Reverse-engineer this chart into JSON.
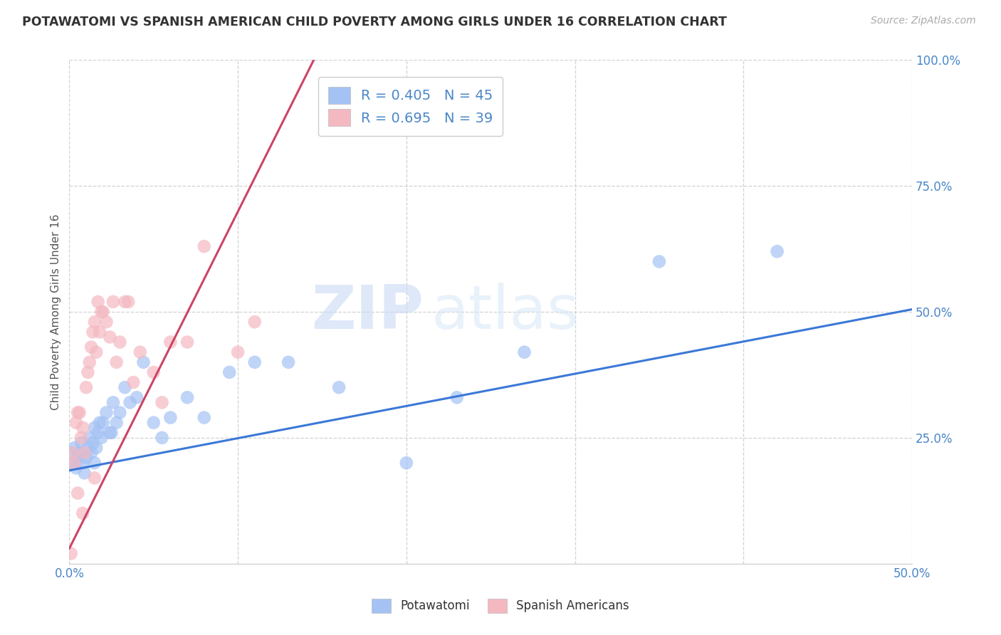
{
  "title": "POTAWATOMI VS SPANISH AMERICAN CHILD POVERTY AMONG GIRLS UNDER 16 CORRELATION CHART",
  "source": "Source: ZipAtlas.com",
  "ylabel": "Child Poverty Among Girls Under 16",
  "xlim": [
    0.0,
    0.5
  ],
  "ylim": [
    0.0,
    1.0
  ],
  "xticks": [
    0.0,
    0.1,
    0.2,
    0.3,
    0.4,
    0.5
  ],
  "xtick_labels_show": [
    "0.0%",
    "",
    "",
    "",
    "",
    "50.0%"
  ],
  "yticks": [
    0.0,
    0.25,
    0.5,
    0.75,
    1.0
  ],
  "ytick_labels": [
    "",
    "25.0%",
    "50.0%",
    "75.0%",
    "100.0%"
  ],
  "blue_label": "Potawatomi",
  "pink_label": "Spanish Americans",
  "blue_R": 0.405,
  "blue_N": 45,
  "pink_R": 0.695,
  "pink_N": 39,
  "blue_color": "#a4c2f4",
  "pink_color": "#f4b8c1",
  "blue_line_color": "#3c78d8",
  "pink_line_color": "#cc4466",
  "watermark_zip": "ZIP",
  "watermark_atlas": "atlas",
  "blue_trend_x": [
    0.0,
    0.5
  ],
  "blue_trend_y": [
    0.185,
    0.505
  ],
  "pink_trend_x": [
    0.0,
    0.145
  ],
  "pink_trend_y": [
    0.03,
    1.0
  ],
  "blue_x": [
    0.001,
    0.002,
    0.003,
    0.004,
    0.005,
    0.006,
    0.007,
    0.008,
    0.009,
    0.01,
    0.011,
    0.012,
    0.013,
    0.014,
    0.015,
    0.016,
    0.017,
    0.018,
    0.019,
    0.02,
    0.022,
    0.024,
    0.026,
    0.028,
    0.03,
    0.033,
    0.036,
    0.04,
    0.044,
    0.05,
    0.055,
    0.06,
    0.07,
    0.08,
    0.095,
    0.11,
    0.13,
    0.16,
    0.2,
    0.23,
    0.27,
    0.35,
    0.42,
    0.015,
    0.025
  ],
  "blue_y": [
    0.22,
    0.2,
    0.23,
    0.19,
    0.21,
    0.22,
    0.24,
    0.2,
    0.18,
    0.21,
    0.23,
    0.25,
    0.22,
    0.24,
    0.27,
    0.23,
    0.26,
    0.28,
    0.25,
    0.28,
    0.3,
    0.26,
    0.32,
    0.28,
    0.3,
    0.35,
    0.32,
    0.33,
    0.4,
    0.28,
    0.25,
    0.29,
    0.33,
    0.29,
    0.38,
    0.4,
    0.4,
    0.35,
    0.2,
    0.33,
    0.42,
    0.6,
    0.62,
    0.2,
    0.26
  ],
  "pink_x": [
    0.001,
    0.002,
    0.003,
    0.004,
    0.005,
    0.006,
    0.007,
    0.008,
    0.009,
    0.01,
    0.011,
    0.012,
    0.013,
    0.014,
    0.015,
    0.016,
    0.017,
    0.018,
    0.019,
    0.02,
    0.022,
    0.024,
    0.026,
    0.028,
    0.03,
    0.033,
    0.035,
    0.038,
    0.042,
    0.05,
    0.055,
    0.06,
    0.07,
    0.08,
    0.1,
    0.11,
    0.015,
    0.005,
    0.008
  ],
  "pink_y": [
    0.02,
    0.22,
    0.2,
    0.28,
    0.3,
    0.3,
    0.25,
    0.27,
    0.22,
    0.35,
    0.38,
    0.4,
    0.43,
    0.46,
    0.48,
    0.42,
    0.52,
    0.46,
    0.5,
    0.5,
    0.48,
    0.45,
    0.52,
    0.4,
    0.44,
    0.52,
    0.52,
    0.36,
    0.42,
    0.38,
    0.32,
    0.44,
    0.44,
    0.63,
    0.42,
    0.48,
    0.17,
    0.14,
    0.1
  ]
}
